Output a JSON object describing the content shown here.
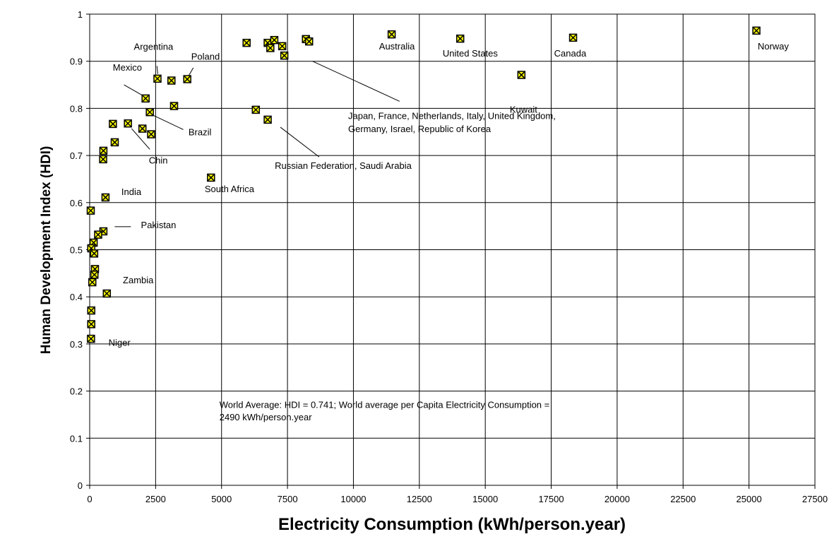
{
  "chart_data": {
    "type": "scatter",
    "title": "",
    "xlabel": "Electricity Consumption (kWh/person.year)",
    "ylabel": "Human Development Index (HDI)",
    "xlim": [
      0,
      27500
    ],
    "ylim": [
      0,
      1
    ],
    "x_ticks": [
      0,
      2500,
      5000,
      7500,
      10000,
      12500,
      15000,
      17500,
      20000,
      22500,
      25000,
      27500
    ],
    "y_ticks": [
      0,
      0.1,
      0.2,
      0.3,
      0.4,
      0.5,
      0.6,
      0.7,
      0.8,
      0.9,
      1
    ],
    "x_tick_labels": [
      "0",
      "2500",
      "5000",
      "7500",
      "10000",
      "12500",
      "15000",
      "17500",
      "20000",
      "22500",
      "25000",
      "27500"
    ],
    "y_tick_labels": [
      "0",
      "0.1",
      "0.2",
      "0.3",
      "0.4",
      "0.5",
      "0.6",
      "0.7",
      "0.8",
      "0.9",
      "1"
    ],
    "grid": true,
    "legend": "none",
    "marker": {
      "shape": "square-x",
      "fill": "#ffff00",
      "stroke": "#000000"
    },
    "points": [
      {
        "x": 25280,
        "y": 0.965
      },
      {
        "x": 18330,
        "y": 0.95
      },
      {
        "x": 14050,
        "y": 0.948
      },
      {
        "x": 11450,
        "y": 0.957
      },
      {
        "x": 16370,
        "y": 0.871
      },
      {
        "x": 5950,
        "y": 0.939
      },
      {
        "x": 6750,
        "y": 0.939
      },
      {
        "x": 7000,
        "y": 0.945
      },
      {
        "x": 6850,
        "y": 0.928
      },
      {
        "x": 7300,
        "y": 0.932
      },
      {
        "x": 7380,
        "y": 0.912
      },
      {
        "x": 8200,
        "y": 0.947
      },
      {
        "x": 8320,
        "y": 0.942
      },
      {
        "x": 6300,
        "y": 0.797
      },
      {
        "x": 6750,
        "y": 0.776
      },
      {
        "x": 4600,
        "y": 0.653
      },
      {
        "x": 2570,
        "y": 0.863
      },
      {
        "x": 3100,
        "y": 0.859
      },
      {
        "x": 3700,
        "y": 0.862
      },
      {
        "x": 2120,
        "y": 0.821
      },
      {
        "x": 3200,
        "y": 0.805
      },
      {
        "x": 2280,
        "y": 0.792
      },
      {
        "x": 880,
        "y": 0.767
      },
      {
        "x": 1450,
        "y": 0.768
      },
      {
        "x": 2000,
        "y": 0.757
      },
      {
        "x": 2330,
        "y": 0.745
      },
      {
        "x": 950,
        "y": 0.728
      },
      {
        "x": 520,
        "y": 0.71
      },
      {
        "x": 510,
        "y": 0.692
      },
      {
        "x": 600,
        "y": 0.611
      },
      {
        "x": 40,
        "y": 0.583
      },
      {
        "x": 520,
        "y": 0.539
      },
      {
        "x": 320,
        "y": 0.532
      },
      {
        "x": 150,
        "y": 0.515
      },
      {
        "x": 60,
        "y": 0.503
      },
      {
        "x": 170,
        "y": 0.492
      },
      {
        "x": 200,
        "y": 0.459
      },
      {
        "x": 180,
        "y": 0.447
      },
      {
        "x": 100,
        "y": 0.431
      },
      {
        "x": 650,
        "y": 0.407
      },
      {
        "x": 60,
        "y": 0.371
      },
      {
        "x": 60,
        "y": 0.342
      },
      {
        "x": 50,
        "y": 0.311
      }
    ],
    "annotations": [
      {
        "text": "Norway",
        "x": 25920,
        "y": 0.925
      },
      {
        "text": "Canada",
        "x": 18220,
        "y": 0.91
      },
      {
        "text": "United States",
        "x": 14430,
        "y": 0.91
      },
      {
        "text": "Australia",
        "x": 11650,
        "y": 0.925
      },
      {
        "text": "Kuwait",
        "x": 16450,
        "y": 0.791
      },
      {
        "text": "Argentina",
        "x": 2420,
        "y": 0.924
      },
      {
        "text": "Poland",
        "x": 4390,
        "y": 0.903
      },
      {
        "text": "Mexico",
        "x": 1430,
        "y": 0.88
      },
      {
        "text": "Brazil",
        "x": 4180,
        "y": 0.743
      },
      {
        "text": "Chin",
        "x": 2600,
        "y": 0.683
      },
      {
        "text": "India",
        "x": 1580,
        "y": 0.616
      },
      {
        "text": "Pakistan",
        "x": 2610,
        "y": 0.546
      },
      {
        "text": "Zambia",
        "x": 1840,
        "y": 0.429
      },
      {
        "text": "Niger",
        "x": 1130,
        "y": 0.296
      },
      {
        "text": "South Africa",
        "x": 5300,
        "y": 0.622
      },
      {
        "text": "Japan, France, Netherlands, Italy, United Kingdom,",
        "x": 9800,
        "y": 0.777,
        "anchor": "start"
      },
      {
        "text": "Germany, Israel, Republic of Korea",
        "x": 9800,
        "y": 0.75,
        "anchor": "start"
      },
      {
        "text": "Russian Federation, Saudi Arabia",
        "x": 7020,
        "y": 0.672,
        "anchor": "start"
      },
      {
        "text": "World Average: HDI = 0.741; World average per Capita Electricity Consumption =",
        "x": 4920,
        "y": 0.164,
        "anchor": "start"
      },
      {
        "text": "2490 kWh/person.year",
        "x": 4920,
        "y": 0.138,
        "anchor": "start"
      }
    ],
    "leader_lines": [
      {
        "from": [
          2550,
          0.89
        ],
        "to": [
          2580,
          0.873
        ]
      },
      {
        "from": [
          3930,
          0.886
        ],
        "to": [
          3760,
          0.87
        ]
      },
      {
        "from": [
          1300,
          0.85
        ],
        "to": [
          2050,
          0.826
        ]
      },
      {
        "from": [
          3550,
          0.755
        ],
        "to": [
          2420,
          0.785
        ]
      },
      {
        "from": [
          2280,
          0.713
        ],
        "to": [
          1590,
          0.757
        ]
      },
      {
        "from": [
          950,
          0.549
        ],
        "to": [
          1560,
          0.549
        ]
      },
      {
        "from": [
          11750,
          0.815
        ],
        "to": [
          8450,
          0.9
        ]
      },
      {
        "from": [
          8700,
          0.697
        ],
        "to": [
          7230,
          0.76
        ]
      }
    ]
  }
}
